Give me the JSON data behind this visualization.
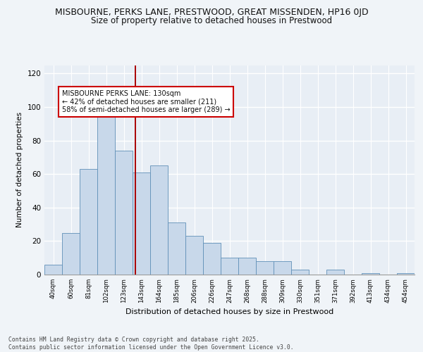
{
  "title1": "MISBOURNE, PERKS LANE, PRESTWOOD, GREAT MISSENDEN, HP16 0JD",
  "title2": "Size of property relative to detached houses in Prestwood",
  "xlabel": "Distribution of detached houses by size in Prestwood",
  "ylabel": "Number of detached properties",
  "bar_labels": [
    "40sqm",
    "60sqm",
    "81sqm",
    "102sqm",
    "123sqm",
    "143sqm",
    "164sqm",
    "185sqm",
    "206sqm",
    "226sqm",
    "247sqm",
    "268sqm",
    "288sqm",
    "309sqm",
    "330sqm",
    "351sqm",
    "371sqm",
    "392sqm",
    "413sqm",
    "434sqm",
    "454sqm"
  ],
  "bar_values": [
    6,
    25,
    63,
    94,
    74,
    61,
    65,
    31,
    23,
    19,
    10,
    10,
    8,
    8,
    3,
    0,
    3,
    0,
    1,
    0,
    1
  ],
  "bar_color": "#c8d8ea",
  "bar_edge_color": "#6090b8",
  "vline_x": 4.65,
  "vline_color": "#aa0000",
  "annotation_text": "MISBOURNE PERKS LANE: 130sqm\n← 42% of detached houses are smaller (211)\n58% of semi-detached houses are larger (289) →",
  "annotation_fontsize": 7.0,
  "annotation_box_color": "#ffffff",
  "annotation_box_edge": "#cc0000",
  "ylim": [
    0,
    125
  ],
  "yticks": [
    0,
    20,
    40,
    60,
    80,
    100,
    120
  ],
  "bg_color": "#e8eef5",
  "grid_color": "#ffffff",
  "footer_text": "Contains HM Land Registry data © Crown copyright and database right 2025.\nContains public sector information licensed under the Open Government Licence v3.0.",
  "title1_fontsize": 9.0,
  "title2_fontsize": 8.5,
  "xlabel_fontsize": 8.0,
  "ylabel_fontsize": 7.5,
  "fig_bg": "#f0f4f8"
}
